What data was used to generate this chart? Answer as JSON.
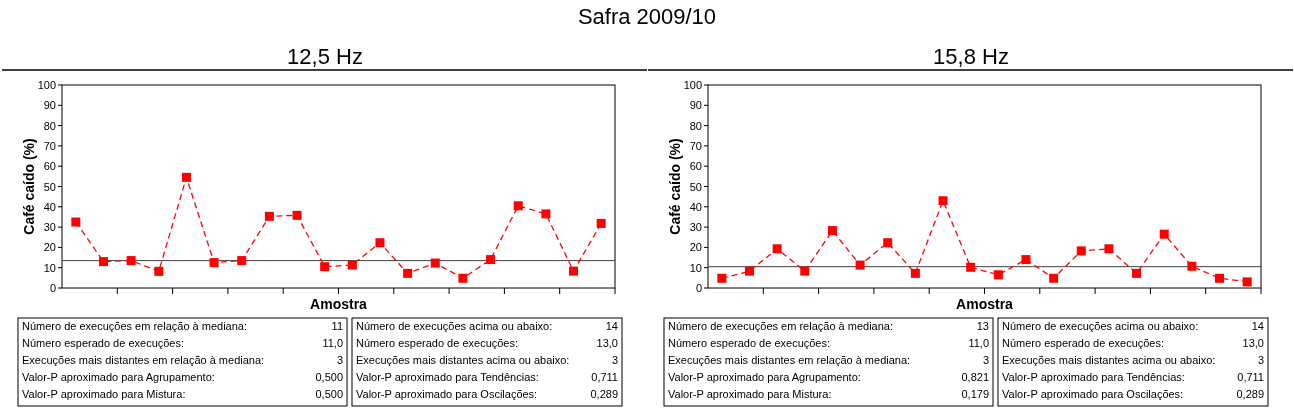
{
  "chart_data": [
    {
      "type": "other",
      "title": "Safra 2009/10"
    },
    {
      "type": "line",
      "title": "12,5 Hz",
      "xlabel": "Amostra",
      "ylabel": "Café caído (%)",
      "categories": [
        null,
        null,
        null,
        null,
        null,
        null,
        null,
        null,
        null,
        null,
        null,
        null,
        null,
        null,
        null,
        null,
        null,
        null,
        null,
        null
      ],
      "series": [
        {
          "color": "#ff0000",
          "values": [
            32.5,
            13,
            13.5,
            8.2,
            54.5,
            12.5,
            13.5,
            35.3,
            35.8,
            10.5,
            11.3,
            22.3,
            7.2,
            12.3,
            4.8,
            14,
            40.5,
            36.5,
            8.3,
            31.8
          ]
        }
      ],
      "ylim": [
        0,
        100
      ],
      "yticks": [
        0,
        10,
        20,
        30,
        40,
        50,
        60,
        70,
        80,
        90,
        100
      ],
      "grid": false,
      "marker": "square",
      "line_style": "dashed",
      "ref_lines": [
        {
          "axis": "y",
          "value": 13.5,
          "color": "#404040"
        }
      ],
      "annotations": [
        "Número de execuções em relação à mediana:",
        "11",
        "Número esperado de execuções:",
        "11,0",
        "Execuções mais distantes em relação à mediana:",
        "3",
        "Valor-P aproximado para Agrupamento:",
        "0,500",
        "Valor-P aproximado para Mistura:",
        "0,500",
        "Número de execuções acima ou abaixo:",
        "14",
        "Número esperado de execuções:",
        "13,0",
        "Execuções mais distantes acima ou abaixo:",
        "3",
        "Valor-P aproximado para Tendências:",
        "0,711",
        "Valor-P aproximado para Oscilações:",
        "0,289"
      ]
    },
    {
      "type": "line",
      "title": "15,8 Hz",
      "xlabel": "Amostra",
      "ylabel": "Café caído (%)",
      "categories": [
        null,
        null,
        null,
        null,
        null,
        null,
        null,
        null,
        null,
        null,
        null,
        null,
        null,
        null,
        null,
        null,
        null,
        null,
        null,
        null
      ],
      "series": [
        {
          "color": "#ff0000",
          "values": [
            4.8,
            8.3,
            19.3,
            8.3,
            28.3,
            11.3,
            22.3,
            7.2,
            43,
            10.2,
            6.5,
            14,
            4.8,
            18.3,
            19.3,
            7.2,
            26.5,
            10.7,
            4.8,
            3
          ]
        }
      ],
      "ylim": [
        0,
        100
      ],
      "yticks": [
        0,
        10,
        20,
        30,
        40,
        50,
        60,
        70,
        80,
        90,
        100
      ],
      "grid": false,
      "marker": "square",
      "line_style": "dashed",
      "ref_lines": [
        {
          "axis": "y",
          "value": 10.5,
          "color": "#404040"
        }
      ],
      "annotations": [
        "Número de execuções em relação à mediana:",
        "13",
        "Número esperado de execuções:",
        "11,0",
        "Execuções mais distantes em relação à mediana:",
        "3",
        "Valor-P aproximado para Agrupamento:",
        "0,821",
        "Valor-P aproximado para Mistura:",
        "0,179",
        "Número de execuções acima ou abaixo:",
        "14",
        "Número esperado de execuções:",
        "13,0",
        "Execuções mais distantes acima ou abaixo:",
        "3",
        "Valor-P aproximado para Tendências:",
        "0,711",
        "Valor-P aproximado para Oscilações:",
        "0,289"
      ]
    }
  ]
}
